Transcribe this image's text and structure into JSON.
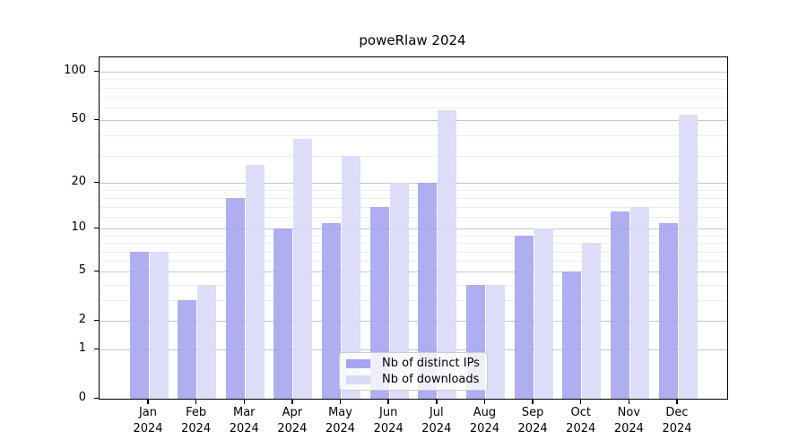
{
  "chart_data": {
    "type": "bar",
    "title": "poweRlaw 2024",
    "categories": [
      "Jan",
      "Feb",
      "Mar",
      "Apr",
      "May",
      "Jun",
      "Jul",
      "Aug",
      "Sep",
      "Oct",
      "Nov",
      "Dec"
    ],
    "x_tick_year": "2024",
    "series": [
      {
        "name": "Nb of distinct IPs",
        "color": "#a5a5f0",
        "values": [
          7,
          3,
          16,
          10,
          11,
          14,
          20,
          4,
          9,
          5,
          13,
          11
        ]
      },
      {
        "name": "Nb of downloads",
        "color": "#d9d9f8",
        "values": [
          7,
          4,
          26,
          38,
          30,
          20,
          58,
          4,
          10,
          8,
          14,
          54
        ]
      }
    ],
    "yscale": "log1p",
    "y_ticks": [
      0,
      1,
      2,
      5,
      10,
      20,
      50,
      100
    ],
    "y_minor_ticks": [
      3,
      4,
      6,
      7,
      8,
      9,
      12,
      14,
      16,
      18,
      30,
      40,
      60,
      70,
      80,
      90
    ],
    "ylim": [
      0,
      123
    ],
    "grid": true,
    "legend_position": "lower center"
  },
  "colors": {
    "frame": "#000000",
    "grid_major": "#c6c6c6",
    "grid_minor": "#ededed",
    "background": "#ffffff"
  }
}
